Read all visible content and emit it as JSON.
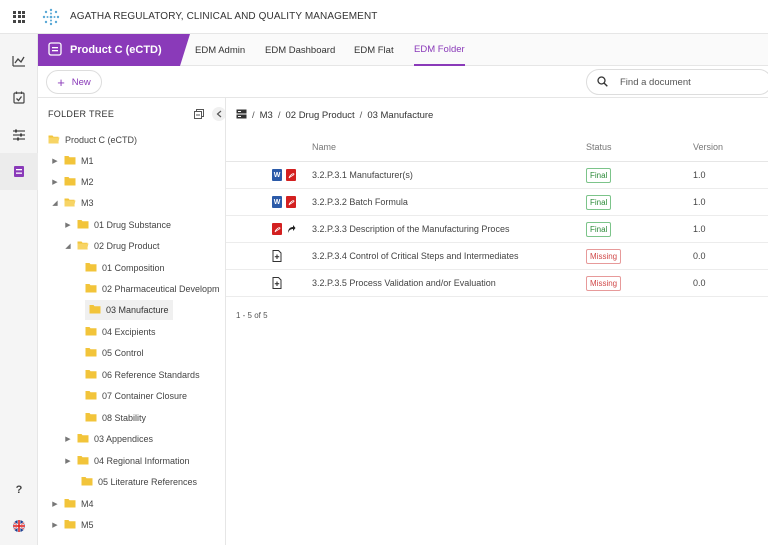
{
  "app": {
    "title": "AGATHA REGULATORY, CLINICAL AND QUALITY MANAGEMENT"
  },
  "product": {
    "label": "Product C (eCTD)"
  },
  "nav_tabs": [
    {
      "label": "EDM Admin"
    },
    {
      "label": "EDM Dashboard"
    },
    {
      "label": "EDM Flat"
    },
    {
      "label": "EDM Folder"
    }
  ],
  "toolbar": {
    "new_label": "New",
    "search_placeholder": "Find a document"
  },
  "tree": {
    "title": "FOLDER TREE",
    "items": [
      {
        "label": "Product C (eCTD)"
      },
      {
        "label": "M1"
      },
      {
        "label": "M2"
      },
      {
        "label": "M3"
      },
      {
        "label": "01 Drug Substance"
      },
      {
        "label": "02 Drug Product"
      },
      {
        "label": "01 Composition"
      },
      {
        "label": "02 Pharmaceutical Developm"
      },
      {
        "label": "03 Manufacture"
      },
      {
        "label": "04 Excipients"
      },
      {
        "label": "05 Control"
      },
      {
        "label": "06 Reference Standards"
      },
      {
        "label": "07 Container Closure"
      },
      {
        "label": "08 Stability"
      },
      {
        "label": "03 Appendices"
      },
      {
        "label": "04 Regional Information"
      },
      {
        "label": "05 Literature References"
      },
      {
        "label": "M4"
      },
      {
        "label": "M5"
      }
    ]
  },
  "breadcrumb": [
    "M3",
    "02 Drug Product",
    "03 Manufacture"
  ],
  "table": {
    "columns": [
      "Name",
      "Status",
      "Version"
    ],
    "rows": [
      {
        "name": "3.2.P.3.1 Manufacturer(s)",
        "status": "Final",
        "version": "1.0",
        "icons": [
          "word-doc-icon",
          "pdf-icon"
        ]
      },
      {
        "name": "3.2.P.3.2 Batch Formula",
        "status": "Final",
        "version": "1.0",
        "icons": [
          "word-doc-icon",
          "pdf-icon"
        ]
      },
      {
        "name": "3.2.P.3.3 Description of the Manufacturing Proces",
        "status": "Final",
        "version": "1.0",
        "icons": [
          "pdf-icon",
          "link-arrow-icon"
        ]
      },
      {
        "name": "3.2.P.3.4 Control of Critical Steps and Intermediates",
        "status": "Missing",
        "version": "0.0",
        "icons": [
          "add-document-icon"
        ]
      },
      {
        "name": "3.2.P.3.5 Process Validation and/or Evaluation",
        "status": "Missing",
        "version": "0.0",
        "icons": [
          "add-document-icon"
        ]
      }
    ],
    "pager": "1 - 5 of 5"
  },
  "colors": {
    "accent": "#8a3ab9",
    "final": "#2e8b3a",
    "missing": "#d04a4a",
    "folder": "#f2c43a"
  }
}
